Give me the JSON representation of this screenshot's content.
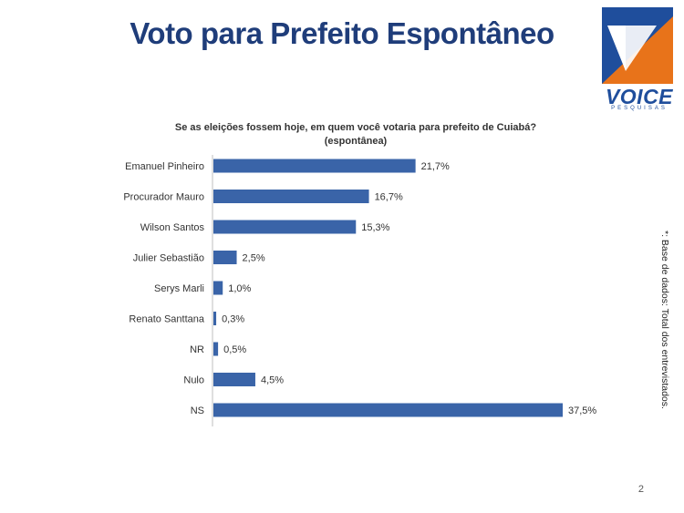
{
  "slide": {
    "title": "Voto para Prefeito Espontâneo",
    "page_number": "2",
    "footnote": "*: Base de dados: Total dos entrevistados."
  },
  "logo": {
    "word": "VOICE",
    "sub": "PESQUISAS",
    "colors": {
      "blue": "#1f4e9c",
      "orange": "#e8731a"
    }
  },
  "chart_data": {
    "type": "bar",
    "orientation": "horizontal",
    "title": "Se as eleições fossem hoje, em quem você votaria para prefeito de Cuiabá?",
    "subtitle": "(espontânea)",
    "categories": [
      "Emanuel Pinheiro",
      "Procurador Mauro",
      "Wilson Santos",
      "Julier Sebastião",
      "Serys Marli",
      "Renato Santtana",
      "NR",
      "Nulo",
      "NS"
    ],
    "values": [
      21.7,
      16.7,
      15.3,
      2.5,
      1.0,
      0.3,
      0.5,
      4.5,
      37.5
    ],
    "value_labels": [
      "21,7%",
      "16,7%",
      "15,3%",
      "2,5%",
      "1,0%",
      "0,3%",
      "0,5%",
      "4,5%",
      "37,5%"
    ],
    "bar_color": "#3a64a8",
    "grid": false
  }
}
